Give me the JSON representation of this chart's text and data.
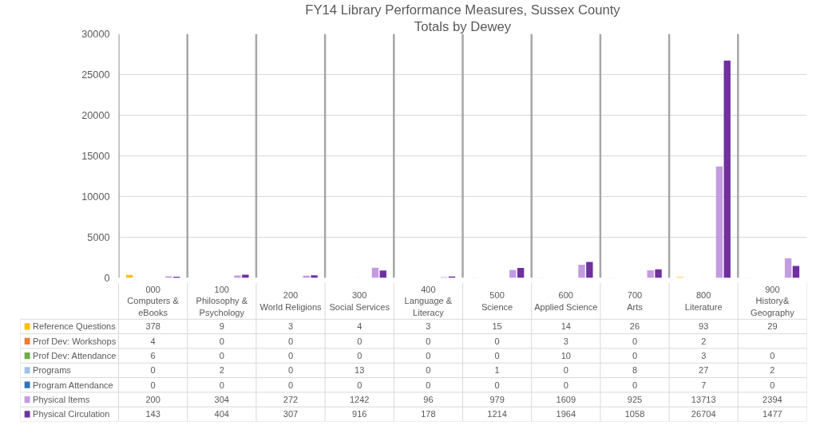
{
  "chart_data": {
    "type": "bar",
    "title": "FY14 Library Performance Measures, Sussex County",
    "subtitle": "Totals by Dewey",
    "categories": [
      "000\nComputers & eBooks",
      "100\nPhilosophy & Psychology",
      "200\nWorld Religions",
      "300\nSocial Services",
      "400\nLanguage & Literacy",
      "500\nScience",
      "600\nApplied Science",
      "700\nArts",
      "800\nLiterature",
      "900\nHistory& Geography"
    ],
    "series": [
      {
        "name": "Reference Questions",
        "color": "#ffc000",
        "values": [
          378,
          9,
          3,
          4,
          3,
          15,
          14,
          26,
          93,
          29
        ]
      },
      {
        "name": "Prof Dev: Workshops",
        "color": "#ed7d31",
        "values": [
          4,
          0,
          0,
          0,
          0,
          0,
          3,
          0,
          2,
          null
        ]
      },
      {
        "name": "Prof Dev: Attendance",
        "color": "#70ad47",
        "values": [
          6,
          0,
          0,
          0,
          0,
          0,
          10,
          0,
          3,
          0
        ]
      },
      {
        "name": "Programs",
        "color": "#9dc3e6",
        "values": [
          0,
          2,
          0,
          13,
          0,
          1,
          0,
          8,
          27,
          2
        ]
      },
      {
        "name": "Program Attendance",
        "color": "#2e75b6",
        "values": [
          0,
          0,
          0,
          0,
          0,
          0,
          0,
          0,
          7,
          0
        ]
      },
      {
        "name": "Physical Items",
        "color": "#c39be1",
        "values": [
          200,
          304,
          272,
          1242,
          96,
          979,
          1609,
          925,
          13713,
          2394
        ]
      },
      {
        "name": "Physical Circulation",
        "color": "#7030a0",
        "values": [
          143,
          404,
          307,
          916,
          178,
          1214,
          1964,
          1058,
          26704,
          1477
        ]
      }
    ],
    "ylim": [
      0,
      30000
    ],
    "yticks": [
      0,
      5000,
      10000,
      15000,
      20000,
      25000,
      30000
    ],
    "grid": true,
    "legend": "bottom",
    "data_labels": true
  }
}
